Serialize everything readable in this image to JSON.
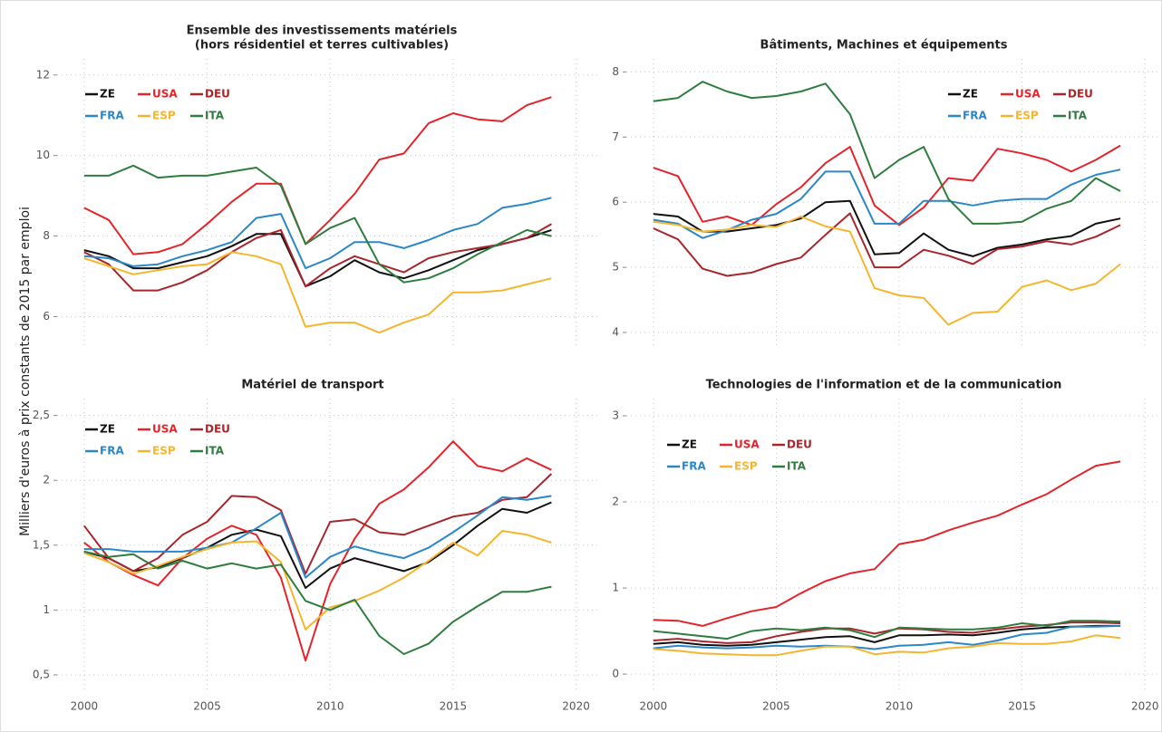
{
  "ylabel": "Milliers d'euros à prix constants de 2015 par emploi",
  "chart_data": [
    {
      "type": "line",
      "title": [
        "Ensemble des investissements matériels",
        "(hors résidentiel et terres cultivables)"
      ],
      "x": [
        2000,
        2001,
        2002,
        2003,
        2004,
        2005,
        2006,
        2007,
        2008,
        2009,
        2010,
        2011,
        2012,
        2013,
        2014,
        2015,
        2016,
        2017,
        2018,
        2019
      ],
      "xlim": [
        1998.9,
        2020.9
      ],
      "xticks": [
        2000,
        2005,
        2010,
        2015,
        2020
      ],
      "xtick_labels": false,
      "ylim": [
        5.2,
        12.4
      ],
      "yticks": [
        6,
        8,
        10,
        12
      ],
      "grid": true,
      "legend": "upper left",
      "series": [
        {
          "name": "ZE",
          "color": "#111111",
          "values": [
            7.65,
            7.5,
            7.2,
            7.2,
            7.35,
            7.5,
            7.75,
            8.05,
            8.05,
            6.75,
            7.0,
            7.4,
            7.1,
            6.95,
            7.15,
            7.4,
            7.65,
            7.8,
            7.95,
            8.15
          ]
        },
        {
          "name": "USA",
          "color": "#e3242b",
          "values": [
            8.7,
            8.4,
            7.55,
            7.6,
            7.8,
            8.3,
            8.85,
            9.3,
            9.3,
            7.8,
            8.4,
            9.05,
            9.9,
            10.05,
            10.8,
            11.05,
            10.9,
            10.85,
            11.25,
            11.45
          ]
        },
        {
          "name": "DEU",
          "color": "#a8262b",
          "values": [
            7.6,
            7.3,
            6.65,
            6.65,
            6.85,
            7.15,
            7.6,
            7.95,
            8.15,
            6.75,
            7.2,
            7.5,
            7.3,
            7.1,
            7.45,
            7.6,
            7.7,
            7.8,
            7.95,
            8.3
          ]
        },
        {
          "name": "FRA",
          "color": "#2a87c8",
          "values": [
            7.5,
            7.45,
            7.25,
            7.3,
            7.5,
            7.65,
            7.85,
            8.45,
            8.55,
            7.2,
            7.45,
            7.85,
            7.85,
            7.7,
            7.9,
            8.15,
            8.3,
            8.7,
            8.8,
            8.95
          ]
        },
        {
          "name": "ESP",
          "color": "#f5b52e",
          "values": [
            7.45,
            7.25,
            7.05,
            7.15,
            7.25,
            7.3,
            7.6,
            7.5,
            7.3,
            5.75,
            5.85,
            5.85,
            5.6,
            5.85,
            6.05,
            6.6,
            6.6,
            6.65,
            6.8,
            6.95
          ]
        },
        {
          "name": "ITA",
          "color": "#2e7d3e",
          "values": [
            9.5,
            9.5,
            9.75,
            9.45,
            9.5,
            9.5,
            9.6,
            9.7,
            9.25,
            7.8,
            8.2,
            8.45,
            7.3,
            6.85,
            6.95,
            7.2,
            7.55,
            7.85,
            8.15,
            8.0
          ]
        }
      ]
    },
    {
      "type": "line",
      "title": [
        "Bâtiments, Machines et équipements"
      ],
      "x": [
        2000,
        2001,
        2002,
        2003,
        2004,
        2005,
        2006,
        2007,
        2008,
        2009,
        2010,
        2011,
        2012,
        2013,
        2014,
        2015,
        2016,
        2017,
        2018,
        2019
      ],
      "xlim": [
        1998.9,
        2020.6
      ],
      "xticks": [
        2000,
        2005,
        2010,
        2015,
        2020
      ],
      "xtick_labels": false,
      "ylim": [
        3.75,
        8.2
      ],
      "yticks": [
        4,
        5,
        6,
        7,
        8
      ],
      "grid": true,
      "legend": "upper right",
      "series": [
        {
          "name": "ZE",
          "color": "#111111",
          "values": [
            5.82,
            5.78,
            5.55,
            5.55,
            5.6,
            5.65,
            5.75,
            6.0,
            6.02,
            5.2,
            5.22,
            5.52,
            5.27,
            5.17,
            5.3,
            5.35,
            5.43,
            5.48,
            5.67,
            5.75
          ]
        },
        {
          "name": "USA",
          "color": "#e3242b",
          "values": [
            6.53,
            6.4,
            5.7,
            5.78,
            5.65,
            5.97,
            6.23,
            6.6,
            6.85,
            5.95,
            5.65,
            5.92,
            6.37,
            6.33,
            6.82,
            6.75,
            6.65,
            6.47,
            6.65,
            6.87
          ]
        },
        {
          "name": "DEU",
          "color": "#a8262b",
          "values": [
            5.6,
            5.43,
            4.98,
            4.87,
            4.92,
            5.05,
            5.15,
            5.5,
            5.83,
            5.0,
            5.0,
            5.27,
            5.18,
            5.05,
            5.28,
            5.32,
            5.4,
            5.35,
            5.47,
            5.65
          ]
        },
        {
          "name": "FRA",
          "color": "#2a87c8",
          "values": [
            5.73,
            5.67,
            5.45,
            5.57,
            5.73,
            5.82,
            6.05,
            6.47,
            6.47,
            5.67,
            5.67,
            6.02,
            6.02,
            5.95,
            6.02,
            6.05,
            6.05,
            6.27,
            6.42,
            6.5
          ]
        },
        {
          "name": "ESP",
          "color": "#f5b52e",
          "values": [
            5.7,
            5.65,
            5.55,
            5.58,
            5.65,
            5.62,
            5.78,
            5.63,
            5.55,
            4.68,
            4.57,
            4.53,
            4.12,
            4.3,
            4.32,
            4.7,
            4.8,
            4.65,
            4.75,
            5.05
          ]
        },
        {
          "name": "ITA",
          "color": "#2e7d3e",
          "values": [
            7.55,
            7.6,
            7.85,
            7.7,
            7.6,
            7.63,
            7.7,
            7.82,
            7.35,
            6.37,
            6.65,
            6.85,
            6.05,
            5.67,
            5.67,
            5.7,
            5.9,
            6.02,
            6.37,
            6.17
          ]
        }
      ]
    },
    {
      "type": "line",
      "title": [
        "Matériel de transport"
      ],
      "x": [
        2000,
        2001,
        2002,
        2003,
        2004,
        2005,
        2006,
        2007,
        2008,
        2009,
        2010,
        2011,
        2012,
        2013,
        2014,
        2015,
        2016,
        2017,
        2018,
        2019
      ],
      "xlim": [
        1998.9,
        2020.9
      ],
      "xticks": [
        2000,
        2005,
        2010,
        2015,
        2020
      ],
      "xtick_labels": true,
      "ylim": [
        0.36,
        2.63
      ],
      "yticks": [
        {
          "value": 0.5,
          "label": "0,5"
        },
        1,
        {
          "value": 1.5,
          "label": "1,5"
        },
        2,
        {
          "value": 2.5,
          "label": "2,5"
        }
      ],
      "grid": true,
      "legend": "upper left",
      "series": [
        {
          "name": "ZE",
          "color": "#111111",
          "values": [
            1.45,
            1.4,
            1.3,
            1.33,
            1.4,
            1.48,
            1.58,
            1.62,
            1.57,
            1.17,
            1.32,
            1.4,
            1.35,
            1.3,
            1.37,
            1.5,
            1.65,
            1.78,
            1.75,
            1.83
          ]
        },
        {
          "name": "USA",
          "color": "#e3242b",
          "values": [
            1.52,
            1.37,
            1.27,
            1.19,
            1.4,
            1.55,
            1.65,
            1.58,
            1.25,
            0.61,
            1.2,
            1.55,
            1.82,
            1.93,
            2.1,
            2.3,
            2.11,
            2.07,
            2.17,
            2.08
          ]
        },
        {
          "name": "DEU",
          "color": "#a8262b",
          "values": [
            1.65,
            1.4,
            1.3,
            1.4,
            1.58,
            1.68,
            1.88,
            1.87,
            1.77,
            1.28,
            1.68,
            1.7,
            1.6,
            1.58,
            1.65,
            1.72,
            1.75,
            1.85,
            1.87,
            2.05
          ]
        },
        {
          "name": "FRA",
          "color": "#2a87c8",
          "values": [
            1.47,
            1.47,
            1.45,
            1.45,
            1.45,
            1.48,
            1.52,
            1.63,
            1.75,
            1.25,
            1.41,
            1.49,
            1.44,
            1.4,
            1.48,
            1.6,
            1.73,
            1.87,
            1.85,
            1.88
          ]
        },
        {
          "name": "ESP",
          "color": "#f5b52e",
          "values": [
            1.44,
            1.37,
            1.28,
            1.34,
            1.41,
            1.47,
            1.52,
            1.53,
            1.37,
            0.85,
            1.02,
            1.07,
            1.15,
            1.25,
            1.38,
            1.52,
            1.42,
            1.61,
            1.58,
            1.52
          ]
        },
        {
          "name": "ITA",
          "color": "#2e7d3e",
          "values": [
            1.45,
            1.41,
            1.43,
            1.32,
            1.38,
            1.32,
            1.36,
            1.32,
            1.35,
            1.07,
            1.0,
            1.08,
            0.8,
            0.66,
            0.74,
            0.91,
            1.03,
            1.14,
            1.14,
            1.18
          ]
        }
      ]
    },
    {
      "type": "line",
      "title": [
        "Technologies de l'information et de la communication"
      ],
      "x": [
        2000,
        2001,
        2002,
        2003,
        2004,
        2005,
        2006,
        2007,
        2008,
        2009,
        2010,
        2011,
        2012,
        2013,
        2014,
        2015,
        2016,
        2017,
        2018,
        2019
      ],
      "xlim": [
        1998.9,
        2020.6
      ],
      "xticks": [
        2000,
        2005,
        2010,
        2015,
        2020
      ],
      "xtick_labels": true,
      "ylim": [
        -0.22,
        3.2
      ],
      "yticks": [
        0,
        1,
        2,
        3
      ],
      "grid": true,
      "legend": "upper left",
      "series": [
        {
          "name": "ZE",
          "color": "#111111",
          "values": [
            0.35,
            0.37,
            0.34,
            0.33,
            0.34,
            0.37,
            0.4,
            0.43,
            0.44,
            0.37,
            0.45,
            0.45,
            0.46,
            0.45,
            0.48,
            0.52,
            0.54,
            0.55,
            0.56,
            0.56
          ]
        },
        {
          "name": "USA",
          "color": "#e3242b",
          "values": [
            0.63,
            0.62,
            0.56,
            0.65,
            0.73,
            0.78,
            0.94,
            1.08,
            1.17,
            1.22,
            1.51,
            1.56,
            1.67,
            1.76,
            1.84,
            1.97,
            2.09,
            2.26,
            2.42,
            2.47
          ]
        },
        {
          "name": "DEU",
          "color": "#a8262b",
          "values": [
            0.39,
            0.41,
            0.38,
            0.36,
            0.37,
            0.44,
            0.49,
            0.53,
            0.53,
            0.47,
            0.53,
            0.52,
            0.49,
            0.48,
            0.52,
            0.55,
            0.57,
            0.6,
            0.6,
            0.59
          ]
        },
        {
          "name": "FRA",
          "color": "#2a87c8",
          "values": [
            0.3,
            0.33,
            0.31,
            0.3,
            0.31,
            0.33,
            0.32,
            0.33,
            0.32,
            0.29,
            0.33,
            0.34,
            0.37,
            0.34,
            0.39,
            0.46,
            0.48,
            0.55,
            0.55,
            0.56
          ]
        },
        {
          "name": "ESP",
          "color": "#f5b52e",
          "values": [
            0.29,
            0.27,
            0.24,
            0.23,
            0.22,
            0.22,
            0.27,
            0.32,
            0.32,
            0.23,
            0.26,
            0.25,
            0.3,
            0.32,
            0.36,
            0.35,
            0.35,
            0.38,
            0.45,
            0.42
          ]
        },
        {
          "name": "ITA",
          "color": "#2e7d3e",
          "values": [
            0.5,
            0.47,
            0.44,
            0.41,
            0.5,
            0.53,
            0.51,
            0.54,
            0.51,
            0.43,
            0.54,
            0.53,
            0.52,
            0.52,
            0.54,
            0.59,
            0.56,
            0.62,
            0.62,
            0.61
          ]
        }
      ]
    }
  ]
}
